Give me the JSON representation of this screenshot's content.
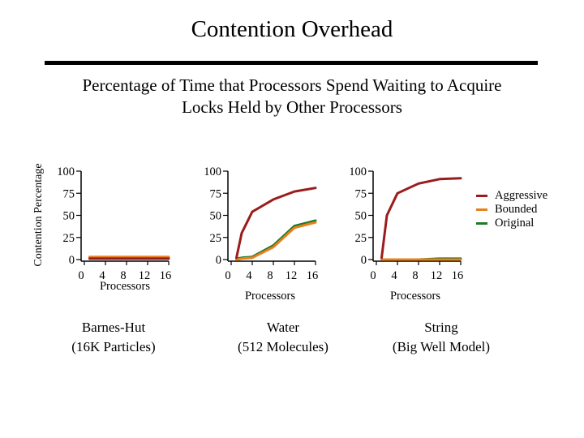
{
  "title": "Contention Overhead",
  "subtitle_line1": "Percentage of Time that Processors Spend Waiting to Acquire",
  "subtitle_line2": "Locks Held by Other Processors",
  "y_axis_label": "Contention Percentage",
  "colors": {
    "aggressive": "#9b1c1c",
    "bounded": "#e8801e",
    "original": "#1e7a28"
  },
  "legend": [
    {
      "key": "aggressive",
      "label": "Aggressive"
    },
    {
      "key": "bounded",
      "label": "Bounded"
    },
    {
      "key": "original",
      "label": "Original"
    }
  ],
  "chart_data": [
    {
      "type": "line",
      "caption_line1": "Barnes-Hut",
      "caption_line2": "(16K Particles)",
      "xlabel": "Processors",
      "xticks": [
        0,
        4,
        8,
        12,
        16
      ],
      "yticks": [
        0,
        25,
        50,
        75,
        100
      ],
      "ylim": [
        0,
        100
      ],
      "xlim": [
        0,
        16
      ],
      "x": [
        1,
        2,
        4,
        8,
        12,
        16
      ],
      "series": [
        {
          "key": "original",
          "values": [
            2,
            2,
            2,
            2,
            2,
            2
          ]
        },
        {
          "key": "bounded",
          "values": [
            3,
            3,
            3,
            3,
            3,
            3
          ]
        },
        {
          "key": "aggressive",
          "values": [
            1,
            1,
            1,
            1,
            1,
            1
          ]
        }
      ]
    },
    {
      "type": "line",
      "caption_line1": "Water",
      "caption_line2": "(512 Molecules)",
      "xlabel": "Processors",
      "xticks": [
        0,
        4,
        8,
        12,
        16
      ],
      "yticks": [
        0,
        25,
        50,
        75,
        100
      ],
      "ylim": [
        0,
        100
      ],
      "xlim": [
        0,
        16
      ],
      "x": [
        1,
        2,
        4,
        8,
        12,
        16
      ],
      "series": [
        {
          "key": "original",
          "values": [
            1,
            2,
            3,
            16,
            38,
            44
          ]
        },
        {
          "key": "bounded",
          "values": [
            0,
            1,
            2,
            14,
            36,
            42
          ]
        },
        {
          "key": "aggressive",
          "values": [
            2,
            30,
            54,
            68,
            77,
            81
          ]
        }
      ]
    },
    {
      "type": "line",
      "caption_line1": "String",
      "caption_line2": "(Big Well Model)",
      "xlabel": "Processors",
      "xticks": [
        0,
        4,
        8,
        12,
        16
      ],
      "yticks": [
        0,
        25,
        50,
        75,
        100
      ],
      "ylim": [
        0,
        100
      ],
      "xlim": [
        0,
        16
      ],
      "x": [
        1,
        2,
        4,
        8,
        12,
        16
      ],
      "series": [
        {
          "key": "original",
          "values": [
            0,
            0,
            0,
            0,
            1,
            1
          ]
        },
        {
          "key": "bounded",
          "values": [
            0,
            0,
            0,
            0,
            0,
            0
          ]
        },
        {
          "key": "aggressive",
          "values": [
            2,
            50,
            75,
            86,
            91,
            92
          ]
        }
      ]
    }
  ]
}
